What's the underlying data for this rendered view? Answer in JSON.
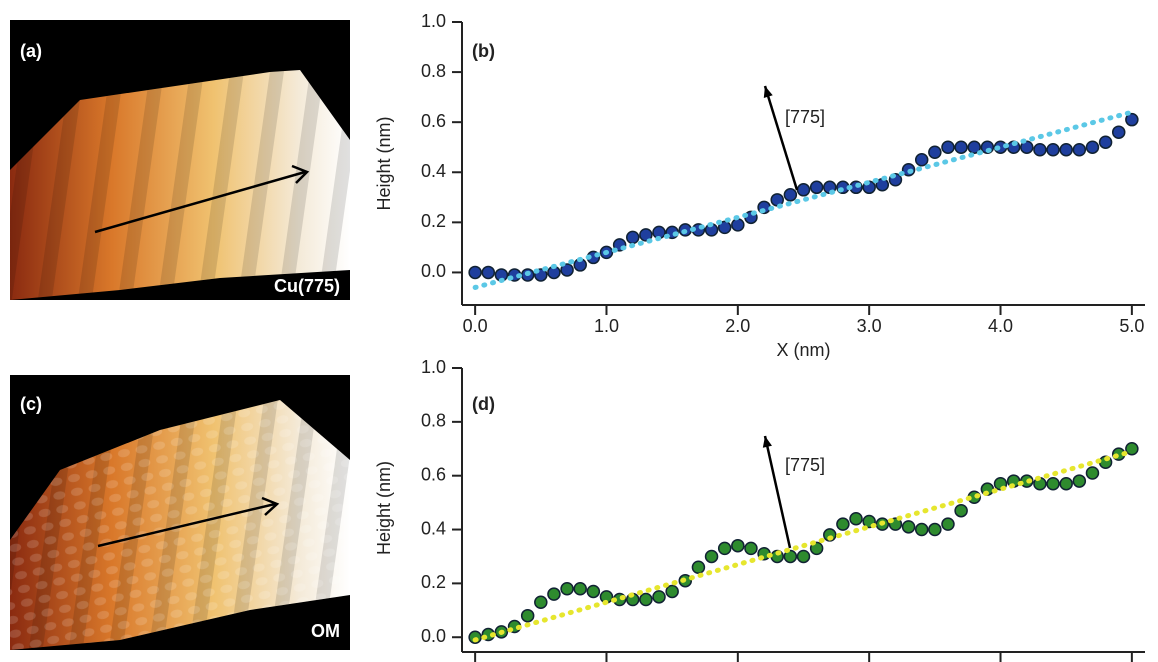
{
  "images": [
    {
      "label": "(a)",
      "caption": "Cu(775)"
    },
    {
      "label": "(c)",
      "caption": "OM"
    }
  ],
  "chart_data": [
    {
      "type": "scatter",
      "panel_label": "(b)",
      "annotation": "[775]",
      "xlabel": "X (nm)",
      "ylabel": "Height (nm)",
      "xlim": [
        -0.1,
        5.1
      ],
      "ylim": [
        -0.13,
        1.0
      ],
      "xticks": [
        {
          "value": 0,
          "label": "0.0"
        },
        {
          "value": 1,
          "label": "1.0"
        },
        {
          "value": 2,
          "label": "2.0"
        },
        {
          "value": 3,
          "label": "3.0"
        },
        {
          "value": 4,
          "label": "4.0"
        },
        {
          "value": 5,
          "label": "5.0"
        }
      ],
      "yticks": [
        {
          "value": 0,
          "label": "0.0"
        },
        0.2,
        0.4,
        0.6,
        0.8,
        {
          "value": 1,
          "label": "1.0"
        }
      ],
      "series": [
        {
          "color": "#1f3f9e",
          "marker": "circle",
          "x": [
            0,
            0.1,
            0.2,
            0.3,
            0.4,
            0.5,
            0.6,
            0.7,
            0.8,
            0.9,
            1,
            1.1,
            1.2,
            1.3,
            1.4,
            1.5,
            1.6,
            1.7,
            1.8,
            1.9,
            2,
            2.1,
            2.2,
            2.3,
            2.4,
            2.5,
            2.6,
            2.7,
            2.8,
            2.9,
            3,
            3.1,
            3.2,
            3.3,
            3.4,
            3.5,
            3.6,
            3.7,
            3.8,
            3.9,
            4,
            4.1,
            4.2,
            4.3,
            4.4,
            4.5,
            4.6,
            4.7,
            4.8,
            4.9,
            5
          ],
          "values": [
            0,
            0,
            -0.01,
            -0.01,
            -0.01,
            -0.01,
            0,
            0.01,
            0.03,
            0.06,
            0.08,
            0.11,
            0.14,
            0.15,
            0.16,
            0.16,
            0.17,
            0.17,
            0.17,
            0.18,
            0.19,
            0.22,
            0.26,
            0.29,
            0.31,
            0.33,
            0.34,
            0.34,
            0.34,
            0.34,
            0.34,
            0.35,
            0.37,
            0.41,
            0.45,
            0.48,
            0.5,
            0.5,
            0.5,
            0.5,
            0.5,
            0.5,
            0.5,
            0.49,
            0.49,
            0.49,
            0.49,
            0.5,
            0.52,
            0.56,
            0.61
          ]
        },
        {
          "color": "#5bc8e6",
          "marker": "dotted-line",
          "x": [
            0,
            5
          ],
          "values": [
            -0.06,
            0.64
          ]
        }
      ]
    },
    {
      "type": "scatter",
      "panel_label": "(d)",
      "annotation": "[775]",
      "ylabel": "Height (nm)",
      "xlim": [
        -0.1,
        5.1
      ],
      "ylim": [
        -0.04,
        1.0
      ],
      "xticks": [
        {
          "value": 0,
          "label": null
        },
        {
          "value": 1,
          "label": null
        },
        {
          "value": 2,
          "label": null
        },
        {
          "value": 3,
          "label": null
        },
        {
          "value": 4,
          "label": null
        },
        {
          "value": 5,
          "label": null
        }
      ],
      "yticks": [
        {
          "value": 0,
          "label": "0.0"
        },
        0.2,
        0.4,
        0.6,
        0.8,
        {
          "value": 1,
          "label": "1.0"
        }
      ],
      "series": [
        {
          "color": "#2e8b2e",
          "marker": "circle",
          "x": [
            0,
            0.1,
            0.2,
            0.3,
            0.4,
            0.5,
            0.6,
            0.7,
            0.8,
            0.9,
            1,
            1.1,
            1.2,
            1.3,
            1.4,
            1.5,
            1.6,
            1.7,
            1.8,
            1.9,
            2,
            2.1,
            2.2,
            2.3,
            2.4,
            2.5,
            2.6,
            2.7,
            2.8,
            2.9,
            3,
            3.1,
            3.2,
            3.3,
            3.4,
            3.5,
            3.6,
            3.7,
            3.8,
            3.9,
            4,
            4.1,
            4.2,
            4.3,
            4.4,
            4.5,
            4.6,
            4.7,
            4.8,
            4.9,
            5
          ],
          "values": [
            0,
            0.01,
            0.02,
            0.04,
            0.08,
            0.13,
            0.16,
            0.18,
            0.18,
            0.17,
            0.15,
            0.14,
            0.14,
            0.14,
            0.15,
            0.17,
            0.21,
            0.26,
            0.3,
            0.33,
            0.34,
            0.33,
            0.31,
            0.3,
            0.3,
            0.3,
            0.33,
            0.38,
            0.42,
            0.44,
            0.43,
            0.42,
            0.42,
            0.41,
            0.4,
            0.4,
            0.42,
            0.47,
            0.52,
            0.55,
            0.57,
            0.58,
            0.58,
            0.57,
            0.57,
            0.57,
            0.58,
            0.61,
            0.65,
            0.68,
            0.7
          ]
        },
        {
          "color": "#e6e62e",
          "marker": "dotted-line",
          "x": [
            0,
            5
          ],
          "values": [
            -0.01,
            0.69
          ]
        }
      ]
    }
  ]
}
